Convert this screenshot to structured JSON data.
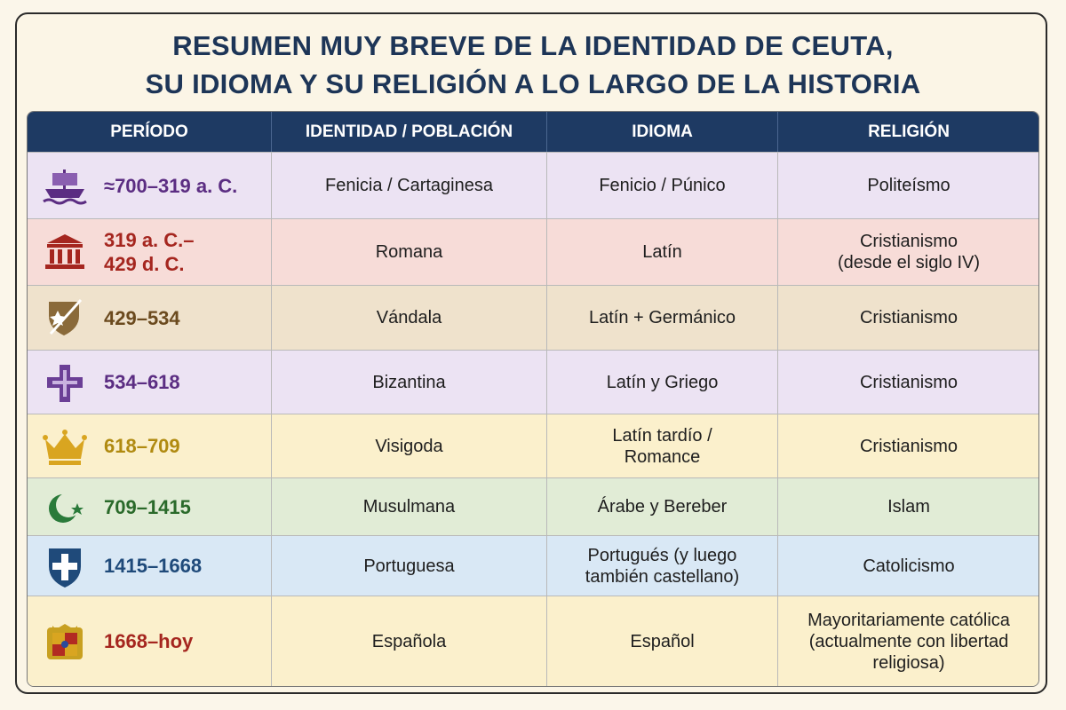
{
  "title": [
    "RESUMEN MUY BREVE DE LA IDENTIDAD DE CEUTA,",
    "SU IDIOMA Y SU RELIGIÓN A LO LARGO DE LA HISTORIA"
  ],
  "table": {
    "header": [
      "PERÍODO",
      "IDENTIDAD / POBLACIÓN",
      "IDIOMA",
      "RELIGIÓN"
    ],
    "rows": [
      [
        "≈700–319 a. C.",
        "Fenicia / Cartaginesa",
        "Fenicio / Púnico",
        "Politeísmo"
      ],
      [
        "319 a. C.–\n429 d. C.",
        "Romana",
        "Latín",
        "Cristianismo\n(desde el siglo IV)"
      ],
      [
        "429–534",
        "Vándala",
        "Latín + Germánico",
        "Cristianismo"
      ],
      [
        "534–618",
        "Bizantina",
        "Latín y Griego",
        "Cristianismo"
      ],
      [
        "618–709",
        "Visigoda",
        "Latín tardío /\nRomance",
        "Cristianismo"
      ],
      [
        "709–1415",
        "Musulmana",
        "Árabe y Bereber",
        "Islam"
      ],
      [
        "1415–1668",
        "Portuguesa",
        "Portugués (y luego\ntambién castellano)",
        "Catolicismo"
      ],
      [
        "1668–hoy",
        "Española",
        "Español",
        "Mayoritariamente católica\n(actualmente con libertad\nreligiosa)"
      ]
    ]
  }
}
